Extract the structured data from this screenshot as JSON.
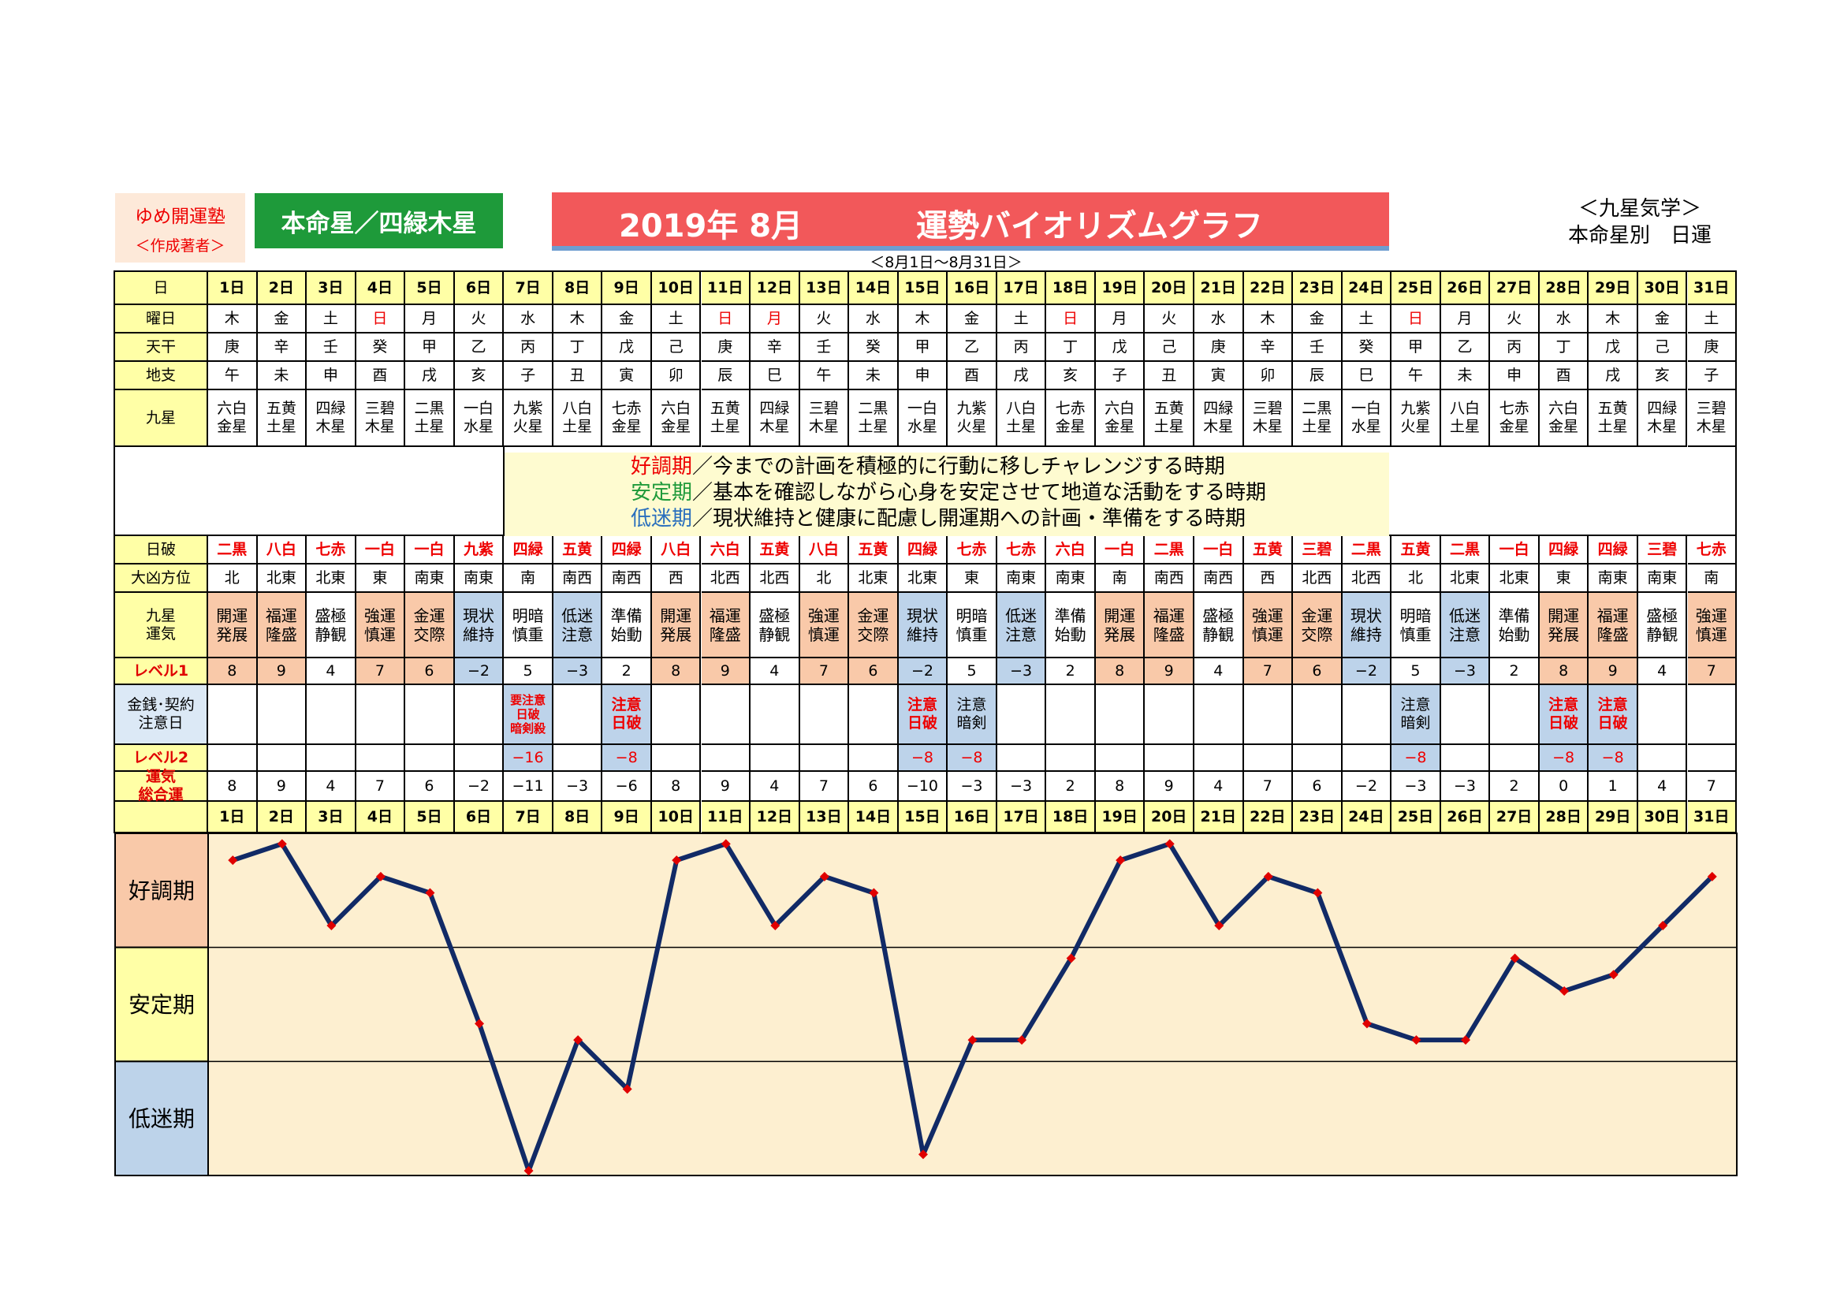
{
  "author": {
    "name": "ゆめ開運塾",
    "sub": "＜作成著者＞"
  },
  "star_label": "本命星／四緑木星",
  "title": {
    "year": "2019年 8月",
    "main": "運勢バイオリズムグラフ"
  },
  "range_label": "＜8月1日～8月31日＞",
  "top_right": {
    "line1": "＜九星気学＞",
    "line2": "本命星別　日運"
  },
  "row_labels": {
    "day": "日",
    "weekday": "曜日",
    "stem": "天干",
    "branch": "地支",
    "star": "九星",
    "hagun": "日破",
    "direction": "大凶方位",
    "fortune": "九星\n運気",
    "level1": "レベル1",
    "money": "金銭･契約\n注意日",
    "level2": "レベル2",
    "total": "運気\n総合運"
  },
  "colors": {
    "red_text": "#ee0000",
    "orange": "#f9c9a9",
    "blue": "#bdd3ea",
    "yellow": "#fefcd2",
    "header_yellow": "#ffffa6",
    "chart_bg": "#fdefd0",
    "line": "#112a66",
    "marker": "#e00000"
  },
  "legend": [
    {
      "key": "好調期",
      "key_color": "#ee0000",
      "text": "／今までの計画を積極的に行動に移しチャレンジする時期"
    },
    {
      "key": "安定期",
      "key_color": "#1e9a3a",
      "text": "／基本を確認しながら心身を安定させて地道な活動をする時期"
    },
    {
      "key": "低迷期",
      "key_color": "#2a6fbd",
      "text": "／現状維持と健康に配慮し開運期への計画・準備をする時期"
    }
  ],
  "zone_labels": [
    "好調期",
    "安定期",
    "低迷期"
  ],
  "days": [
    {
      "day": "1日",
      "weekday": "木",
      "wd_red": false,
      "stem": "庚",
      "branch": "午",
      "star": "六白\n金星",
      "hagun": "二黒",
      "direction": "北",
      "fortune": "開運\n発展",
      "ftype": "o",
      "level1": "8",
      "money": "",
      "level2": "",
      "total": "8"
    },
    {
      "day": "2日",
      "weekday": "金",
      "wd_red": false,
      "stem": "辛",
      "branch": "未",
      "star": "五黄\n土星",
      "hagun": "八白",
      "direction": "北東",
      "fortune": "福運\n隆盛",
      "ftype": "o",
      "level1": "9",
      "money": "",
      "level2": "",
      "total": "9"
    },
    {
      "day": "3日",
      "weekday": "土",
      "wd_red": false,
      "stem": "壬",
      "branch": "申",
      "star": "四緑\n木星",
      "hagun": "七赤",
      "direction": "北東",
      "fortune": "盛極\n静観",
      "ftype": "w",
      "level1": "4",
      "money": "",
      "level2": "",
      "total": "4"
    },
    {
      "day": "4日",
      "weekday": "日",
      "wd_red": true,
      "stem": "癸",
      "branch": "酉",
      "star": "三碧\n木星",
      "hagun": "一白",
      "direction": "東",
      "fortune": "強運\n慎運",
      "ftype": "o",
      "level1": "7",
      "money": "",
      "level2": "",
      "total": "7"
    },
    {
      "day": "5日",
      "weekday": "月",
      "wd_red": false,
      "stem": "甲",
      "branch": "戌",
      "star": "二黒\n土星",
      "hagun": "一白",
      "direction": "南東",
      "fortune": "金運\n交際",
      "ftype": "o",
      "level1": "6",
      "money": "",
      "level2": "",
      "total": "6"
    },
    {
      "day": "6日",
      "weekday": "火",
      "wd_red": false,
      "stem": "乙",
      "branch": "亥",
      "star": "一白\n水星",
      "hagun": "九紫",
      "direction": "南東",
      "fortune": "現状\n維持",
      "ftype": "b",
      "level1": "−2",
      "money": "",
      "level2": "",
      "total": "−2"
    },
    {
      "day": "7日",
      "weekday": "水",
      "wd_red": false,
      "stem": "丙",
      "branch": "子",
      "star": "九紫\n火星",
      "hagun": "四緑",
      "direction": "南",
      "fortune": "明暗\n慎重",
      "ftype": "w",
      "level1": "5",
      "money": "要注意\n日破\n暗剣殺",
      "mtype": "red",
      "level2": "−16",
      "total": "−11"
    },
    {
      "day": "8日",
      "weekday": "木",
      "wd_red": false,
      "stem": "丁",
      "branch": "丑",
      "star": "八白\n土星",
      "hagun": "五黄",
      "direction": "南西",
      "fortune": "低迷\n注意",
      "ftype": "b",
      "level1": "−3",
      "money": "",
      "level2": "",
      "total": "−3"
    },
    {
      "day": "9日",
      "weekday": "金",
      "wd_red": false,
      "stem": "戊",
      "branch": "寅",
      "star": "七赤\n金星",
      "hagun": "四緑",
      "direction": "南西",
      "fortune": "準備\n始動",
      "ftype": "w",
      "level1": "2",
      "money": "注意\n日破",
      "mtype": "red",
      "level2": "−8",
      "total": "−6"
    },
    {
      "day": "10日",
      "weekday": "土",
      "wd_red": false,
      "stem": "己",
      "branch": "卯",
      "star": "六白\n金星",
      "hagun": "八白",
      "direction": "西",
      "fortune": "開運\n発展",
      "ftype": "o",
      "level1": "8",
      "money": "",
      "level2": "",
      "total": "8"
    },
    {
      "day": "11日",
      "weekday": "日",
      "wd_red": true,
      "stem": "庚",
      "branch": "辰",
      "star": "五黄\n土星",
      "hagun": "六白",
      "direction": "北西",
      "fortune": "福運\n隆盛",
      "ftype": "o",
      "level1": "9",
      "money": "",
      "level2": "",
      "total": "9"
    },
    {
      "day": "12日",
      "weekday": "月",
      "wd_red": true,
      "stem": "辛",
      "branch": "巳",
      "star": "四緑\n木星",
      "hagun": "五黄",
      "direction": "北西",
      "fortune": "盛極\n静観",
      "ftype": "w",
      "level1": "4",
      "money": "",
      "level2": "",
      "total": "4"
    },
    {
      "day": "13日",
      "weekday": "火",
      "wd_red": false,
      "stem": "壬",
      "branch": "午",
      "star": "三碧\n木星",
      "hagun": "八白",
      "direction": "北",
      "fortune": "強運\n慎運",
      "ftype": "o",
      "level1": "7",
      "money": "",
      "level2": "",
      "total": "7"
    },
    {
      "day": "14日",
      "weekday": "水",
      "wd_red": false,
      "stem": "癸",
      "branch": "未",
      "star": "二黒\n土星",
      "hagun": "五黄",
      "direction": "北東",
      "fortune": "金運\n交際",
      "ftype": "o",
      "level1": "6",
      "money": "",
      "level2": "",
      "total": "6"
    },
    {
      "day": "15日",
      "weekday": "木",
      "wd_red": false,
      "stem": "甲",
      "branch": "申",
      "star": "一白\n水星",
      "hagun": "四緑",
      "direction": "北東",
      "fortune": "現状\n維持",
      "ftype": "b",
      "level1": "−2",
      "money": "注意\n日破",
      "mtype": "red",
      "level2": "−8",
      "total": "−10"
    },
    {
      "day": "16日",
      "weekday": "金",
      "wd_red": false,
      "stem": "乙",
      "branch": "酉",
      "star": "九紫\n火星",
      "hagun": "七赤",
      "direction": "東",
      "fortune": "明暗\n慎重",
      "ftype": "w",
      "level1": "5",
      "money": "注意\n暗剣",
      "mtype": "black",
      "level2": "−8",
      "total": "−3"
    },
    {
      "day": "17日",
      "weekday": "土",
      "wd_red": false,
      "stem": "丙",
      "branch": "戌",
      "star": "八白\n土星",
      "hagun": "七赤",
      "direction": "南東",
      "fortune": "低迷\n注意",
      "ftype": "b",
      "level1": "−3",
      "money": "",
      "level2": "",
      "total": "−3"
    },
    {
      "day": "18日",
      "weekday": "日",
      "wd_red": true,
      "stem": "丁",
      "branch": "亥",
      "star": "七赤\n金星",
      "hagun": "六白",
      "direction": "南東",
      "fortune": "準備\n始動",
      "ftype": "w",
      "level1": "2",
      "money": "",
      "level2": "",
      "total": "2"
    },
    {
      "day": "19日",
      "weekday": "月",
      "wd_red": false,
      "stem": "戊",
      "branch": "子",
      "star": "六白\n金星",
      "hagun": "一白",
      "direction": "南",
      "fortune": "開運\n発展",
      "ftype": "o",
      "level1": "8",
      "money": "",
      "level2": "",
      "total": "8"
    },
    {
      "day": "20日",
      "weekday": "火",
      "wd_red": false,
      "stem": "己",
      "branch": "丑",
      "star": "五黄\n土星",
      "hagun": "二黒",
      "direction": "南西",
      "fortune": "福運\n隆盛",
      "ftype": "o",
      "level1": "9",
      "money": "",
      "level2": "",
      "total": "9"
    },
    {
      "day": "21日",
      "weekday": "水",
      "wd_red": false,
      "stem": "庚",
      "branch": "寅",
      "star": "四緑\n木星",
      "hagun": "一白",
      "direction": "南西",
      "fortune": "盛極\n静観",
      "ftype": "w",
      "level1": "4",
      "money": "",
      "level2": "",
      "total": "4"
    },
    {
      "day": "22日",
      "weekday": "木",
      "wd_red": false,
      "stem": "辛",
      "branch": "卯",
      "star": "三碧\n木星",
      "hagun": "五黄",
      "direction": "西",
      "fortune": "強運\n慎運",
      "ftype": "o",
      "level1": "7",
      "money": "",
      "level2": "",
      "total": "7"
    },
    {
      "day": "23日",
      "weekday": "金",
      "wd_red": false,
      "stem": "壬",
      "branch": "辰",
      "star": "二黒\n土星",
      "hagun": "三碧",
      "direction": "北西",
      "fortune": "金運\n交際",
      "ftype": "o",
      "level1": "6",
      "money": "",
      "level2": "",
      "total": "6"
    },
    {
      "day": "24日",
      "weekday": "土",
      "wd_red": false,
      "stem": "癸",
      "branch": "巳",
      "star": "一白\n水星",
      "hagun": "二黒",
      "direction": "北西",
      "fortune": "現状\n維持",
      "ftype": "b",
      "level1": "−2",
      "money": "",
      "level2": "",
      "total": "−2"
    },
    {
      "day": "25日",
      "weekday": "日",
      "wd_red": true,
      "stem": "甲",
      "branch": "午",
      "star": "九紫\n火星",
      "hagun": "五黄",
      "direction": "北",
      "fortune": "明暗\n慎重",
      "ftype": "w",
      "level1": "5",
      "money": "注意\n暗剣",
      "mtype": "black",
      "level2": "−8",
      "total": "−3"
    },
    {
      "day": "26日",
      "weekday": "月",
      "wd_red": false,
      "stem": "乙",
      "branch": "未",
      "star": "八白\n土星",
      "hagun": "二黒",
      "direction": "北東",
      "fortune": "低迷\n注意",
      "ftype": "b",
      "level1": "−3",
      "money": "",
      "level2": "",
      "total": "−3"
    },
    {
      "day": "27日",
      "weekday": "火",
      "wd_red": false,
      "stem": "丙",
      "branch": "申",
      "star": "七赤\n金星",
      "hagun": "一白",
      "direction": "北東",
      "fortune": "準備\n始動",
      "ftype": "w",
      "level1": "2",
      "money": "",
      "level2": "",
      "total": "2"
    },
    {
      "day": "28日",
      "weekday": "水",
      "wd_red": false,
      "stem": "丁",
      "branch": "酉",
      "star": "六白\n金星",
      "hagun": "四緑",
      "direction": "東",
      "fortune": "開運\n発展",
      "ftype": "o",
      "level1": "8",
      "money": "注意\n日破",
      "mtype": "red",
      "level2": "−8",
      "total": "0"
    },
    {
      "day": "29日",
      "weekday": "木",
      "wd_red": false,
      "stem": "戊",
      "branch": "戌",
      "star": "五黄\n土星",
      "hagun": "四緑",
      "direction": "南東",
      "fortune": "福運\n隆盛",
      "ftype": "o",
      "level1": "9",
      "money": "注意\n日破",
      "mtype": "red",
      "level2": "−8",
      "total": "1"
    },
    {
      "day": "30日",
      "weekday": "金",
      "wd_red": false,
      "stem": "己",
      "branch": "亥",
      "star": "四緑\n木星",
      "hagun": "三碧",
      "direction": "南東",
      "fortune": "盛極\n静観",
      "ftype": "w",
      "level1": "4",
      "money": "",
      "level2": "",
      "total": "4"
    },
    {
      "day": "31日",
      "weekday": "土",
      "wd_red": false,
      "stem": "庚",
      "branch": "子",
      "star": "三碧\n木星",
      "hagun": "七赤",
      "direction": "南",
      "fortune": "強運\n慎運",
      "ftype": "o",
      "level1": "7",
      "money": "",
      "level2": "",
      "total": "7"
    }
  ],
  "chart_data": {
    "type": "line",
    "x": [
      "1日",
      "2日",
      "3日",
      "4日",
      "5日",
      "6日",
      "7日",
      "8日",
      "9日",
      "10日",
      "11日",
      "12日",
      "13日",
      "14日",
      "15日",
      "16日",
      "17日",
      "18日",
      "19日",
      "20日",
      "21日",
      "22日",
      "23日",
      "24日",
      "25日",
      "26日",
      "27日",
      "28日",
      "29日",
      "30日",
      "31日"
    ],
    "series": [
      {
        "values": [
          8,
          9,
          4,
          7,
          6,
          -2,
          -11,
          -3,
          -6,
          8,
          9,
          4,
          7,
          6,
          -10,
          -3,
          -3,
          2,
          8,
          9,
          4,
          7,
          6,
          -2,
          -3,
          -3,
          2,
          0,
          1,
          4,
          7
        ]
      }
    ],
    "ylim": [
      -11,
      9.5
    ],
    "bands": [
      "好調期",
      "安定期",
      "低迷期"
    ],
    "grid": true
  }
}
